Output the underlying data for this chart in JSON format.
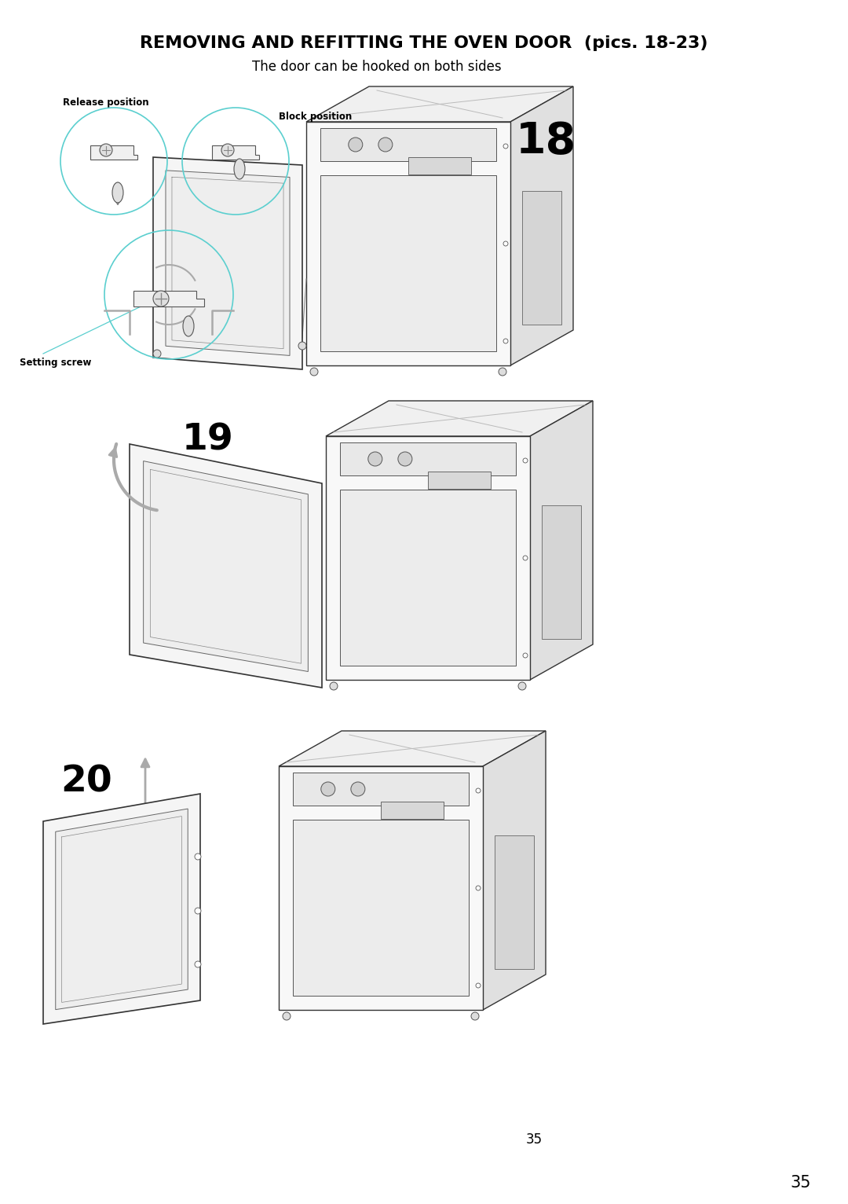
{
  "title_bold": "REMOVING AND REFITTING THE OVEN DOOR  (pics. 18-23)",
  "subtitle": "The door can be hooked on both sides",
  "page_number_35a": "35",
  "page_number_35b": "35",
  "background_color": "#ffffff",
  "text_color": "#000000",
  "line_color": "#333333",
  "cyan_color": "#5bcfcf",
  "gray_color": "#aaaaaa",
  "label_release": "Release position",
  "label_block": "Block position",
  "label_setting_screw": "Setting screw",
  "pic18": "18",
  "pic19": "19",
  "pic20": "20",
  "fig_width": 10.8,
  "fig_height": 15.32,
  "dpi": 100
}
